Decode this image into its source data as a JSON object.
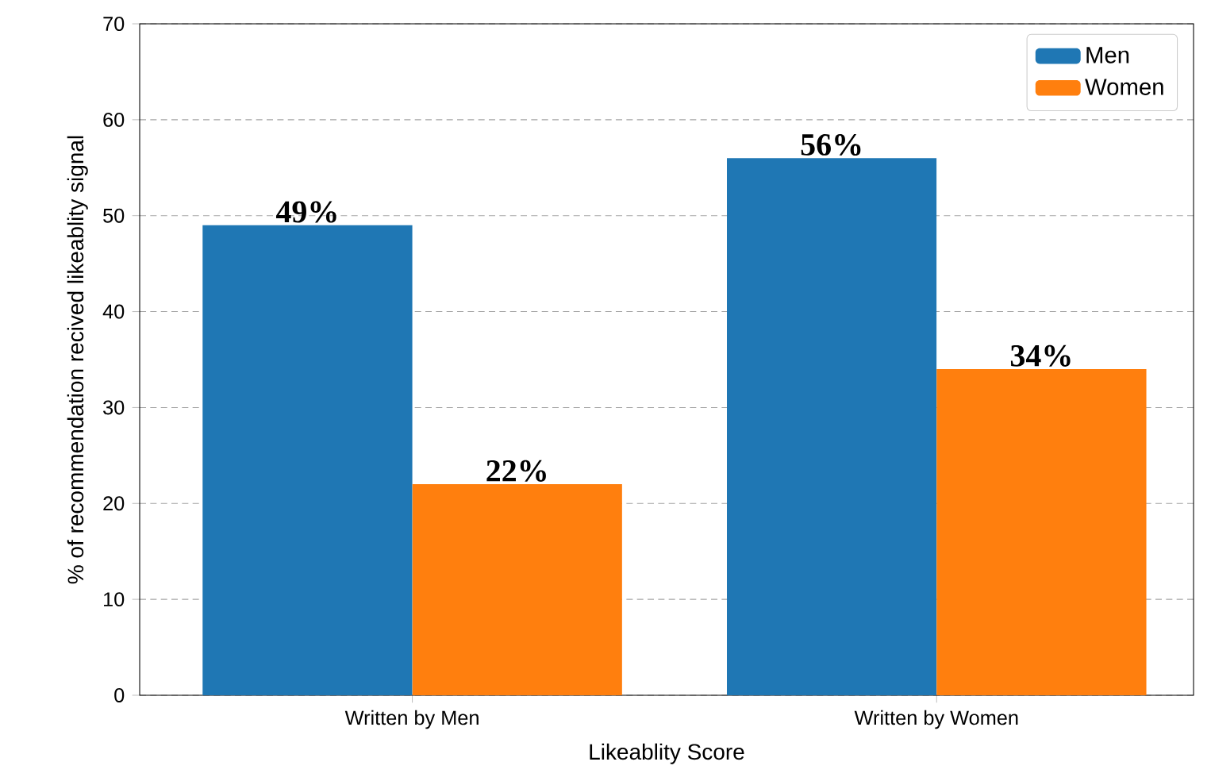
{
  "chart_data": {
    "type": "bar",
    "xlabel": "Likeablity Score",
    "ylabel": "% of recommendation recived likeablity signal",
    "categories": [
      "Written by Men",
      "Written by Women"
    ],
    "series": [
      {
        "name": "Men",
        "color": "#1f77b4",
        "values": [
          49,
          56
        ],
        "value_labels": [
          "49%",
          "56%"
        ]
      },
      {
        "name": "Women",
        "color": "#ff7f0e",
        "values": [
          22,
          34
        ],
        "value_labels": [
          "22%",
          "34%"
        ]
      }
    ],
    "ylim": [
      0,
      70
    ],
    "yticks": [
      0,
      10,
      20,
      30,
      40,
      50,
      60,
      70
    ],
    "grid": "y",
    "legend": "top right"
  }
}
